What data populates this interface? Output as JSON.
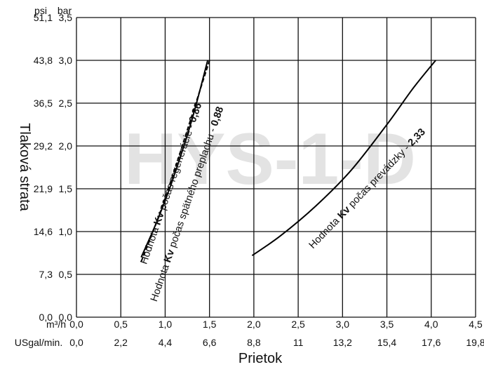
{
  "chart_data": {
    "type": "line",
    "watermark": "HYS-1-D",
    "xlabel": "Prietok",
    "ylabel": "Tlaková strata",
    "x_unit_primary": "m³/h",
    "x_unit_secondary": "USgal/min.",
    "y_unit_left": "psi",
    "y_unit_right": "bar",
    "x_ticks": [
      "0,0",
      "0,5",
      "1,0",
      "1,5",
      "2,0",
      "2,5",
      "3,0",
      "3,5",
      "4,0",
      "4,5"
    ],
    "x_ticks_secondary": [
      "0,0",
      "2,2",
      "4,4",
      "6,6",
      "8,8",
      "11",
      "13,2",
      "15,4",
      "17,6",
      "19,8"
    ],
    "y_ticks_bar": [
      "0,0",
      "0,5",
      "1,0",
      "1,5",
      "2,0",
      "2,5",
      "3,0",
      "3,5"
    ],
    "y_ticks_psi": [
      "0,0",
      "7,3",
      "14,6",
      "21,9",
      "29,2",
      "36,5",
      "43,8",
      "51,1"
    ],
    "xlim": [
      0,
      4.5
    ],
    "ylim": [
      0,
      3.5
    ],
    "grid": true,
    "series": [
      {
        "label_parts": [
          "Hodnota ",
          "Kv",
          " počas regenerácie - ",
          "0,86"
        ],
        "style": "solid",
        "x": [
          0.73,
          0.92,
          1.1,
          1.3,
          1.48
        ],
        "y": [
          0.7,
          1.15,
          1.65,
          2.3,
          3.0
        ]
      },
      {
        "label_parts": [
          "Hodnota ",
          "Kv",
          " počas spätného preplachu - ",
          "0,88"
        ],
        "style": "dashed",
        "x": [
          0.73,
          0.9,
          1.1,
          1.3,
          1.5
        ],
        "y": [
          0.65,
          1.1,
          1.7,
          2.35,
          3.0
        ]
      },
      {
        "label_parts": [
          "Hodnota ",
          "Kv",
          " počas prevádzky - ",
          "2,33"
        ],
        "style": "solid",
        "x": [
          1.98,
          2.3,
          2.7,
          3.1,
          3.5,
          3.8,
          4.05
        ],
        "y": [
          0.72,
          0.95,
          1.3,
          1.72,
          2.25,
          2.68,
          3.0
        ]
      }
    ]
  }
}
